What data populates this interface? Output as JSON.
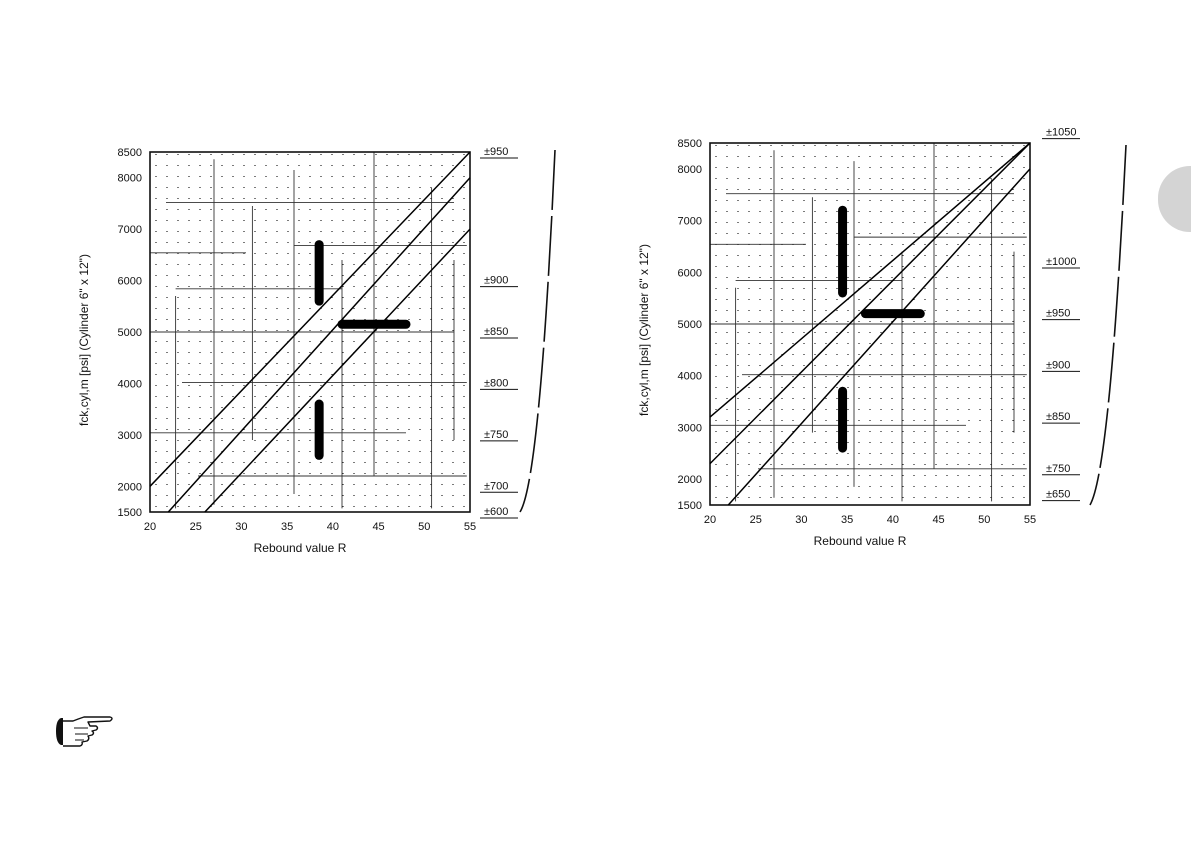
{
  "chart_data": [
    {
      "type": "line",
      "xlabel": "Rebound value R",
      "ylabel": "fck,cyl,m [psi] (Cylinder 6\" x 12\")",
      "x_ticks": [
        "20",
        "25",
        "30",
        "35",
        "40",
        "45",
        "50",
        "55"
      ],
      "y_ticks": [
        {
          "value": 8500,
          "label": "8500"
        },
        {
          "value": 8000,
          "label": "8000"
        },
        {
          "value": 7000,
          "label": "7000"
        },
        {
          "value": 6000,
          "label": "6000"
        },
        {
          "value": 5000,
          "label": "5000"
        },
        {
          "value": 4000,
          "label": "4000"
        },
        {
          "value": 3000,
          "label": "3000"
        },
        {
          "value": 2000,
          "label": "2000"
        },
        {
          "value": 1500,
          "label": "1500"
        }
      ],
      "xlim": [
        20,
        55
      ],
      "ylim": [
        1500,
        8500
      ],
      "grid": true,
      "right_scale": [
        {
          "y": 8500,
          "label": "±950"
        },
        {
          "y": 6000,
          "label": "±900"
        },
        {
          "y": 5000,
          "label": "±850"
        },
        {
          "y": 4000,
          "label": "±800"
        },
        {
          "y": 3000,
          "label": "±750"
        },
        {
          "y": 2000,
          "label": "±700"
        },
        {
          "y": 1500,
          "label": "±600"
        }
      ],
      "series": [
        {
          "values": [
            [
              20,
              2000
            ],
            [
              55,
              8500
            ]
          ]
        },
        {
          "values": [
            [
              22,
              1500
            ],
            [
              55,
              8000
            ]
          ]
        },
        {
          "values": [
            [
              26,
              1500
            ],
            [
              55,
              7000
            ]
          ]
        }
      ],
      "markers": [
        {
          "type": "vertical",
          "x": 38.5,
          "y_from": 5600,
          "y_to": 6700
        },
        {
          "type": "horizontal",
          "y": 5150,
          "x_from": 41,
          "x_to": 48
        },
        {
          "type": "vertical",
          "x": 38.5,
          "y_from": 2600,
          "y_to": 3600
        }
      ]
    },
    {
      "type": "line",
      "xlabel": "Rebound value R",
      "ylabel": "fck,cyl,m [psi] (Cylinder 6\" x 12\")",
      "x_ticks": [
        "20",
        "25",
        "30",
        "35",
        "40",
        "45",
        "50",
        "55"
      ],
      "y_ticks": [
        {
          "value": 8500,
          "label": "8500"
        },
        {
          "value": 8000,
          "label": "8000"
        },
        {
          "value": 7000,
          "label": "7000"
        },
        {
          "value": 6000,
          "label": "6000"
        },
        {
          "value": 5000,
          "label": "5000"
        },
        {
          "value": 4000,
          "label": "4000"
        },
        {
          "value": 3000,
          "label": "3000"
        },
        {
          "value": 2000,
          "label": "2000"
        },
        {
          "value": 1500,
          "label": "1500"
        }
      ],
      "xlim": [
        20,
        55
      ],
      "ylim": [
        1500,
        8500
      ],
      "grid": true,
      "right_scale": [
        {
          "y": 8700,
          "label": "±1050"
        },
        {
          "y": 6200,
          "label": "±1000"
        },
        {
          "y": 5200,
          "label": "±950"
        },
        {
          "y": 4200,
          "label": "±900"
        },
        {
          "y": 3200,
          "label": "±850"
        },
        {
          "y": 2200,
          "label": "±750"
        },
        {
          "y": 1700,
          "label": "±650"
        }
      ],
      "series": [
        {
          "values": [
            [
              20,
              3200
            ],
            [
              55,
              8500
            ]
          ]
        },
        {
          "values": [
            [
              20,
              2300
            ],
            [
              55,
              8500
            ]
          ]
        },
        {
          "values": [
            [
              22,
              1500
            ],
            [
              55,
              8000
            ]
          ]
        }
      ],
      "markers": [
        {
          "type": "vertical",
          "x": 34.5,
          "y_from": 5600,
          "y_to": 7200
        },
        {
          "type": "horizontal",
          "y": 5200,
          "x_from": 37,
          "x_to": 43
        },
        {
          "type": "vertical",
          "x": 34.5,
          "y_from": 2600,
          "y_to": 3700
        }
      ]
    }
  ],
  "icons": {
    "pointer": "pointing-hand-icon",
    "tab": "page-tab-marker"
  }
}
